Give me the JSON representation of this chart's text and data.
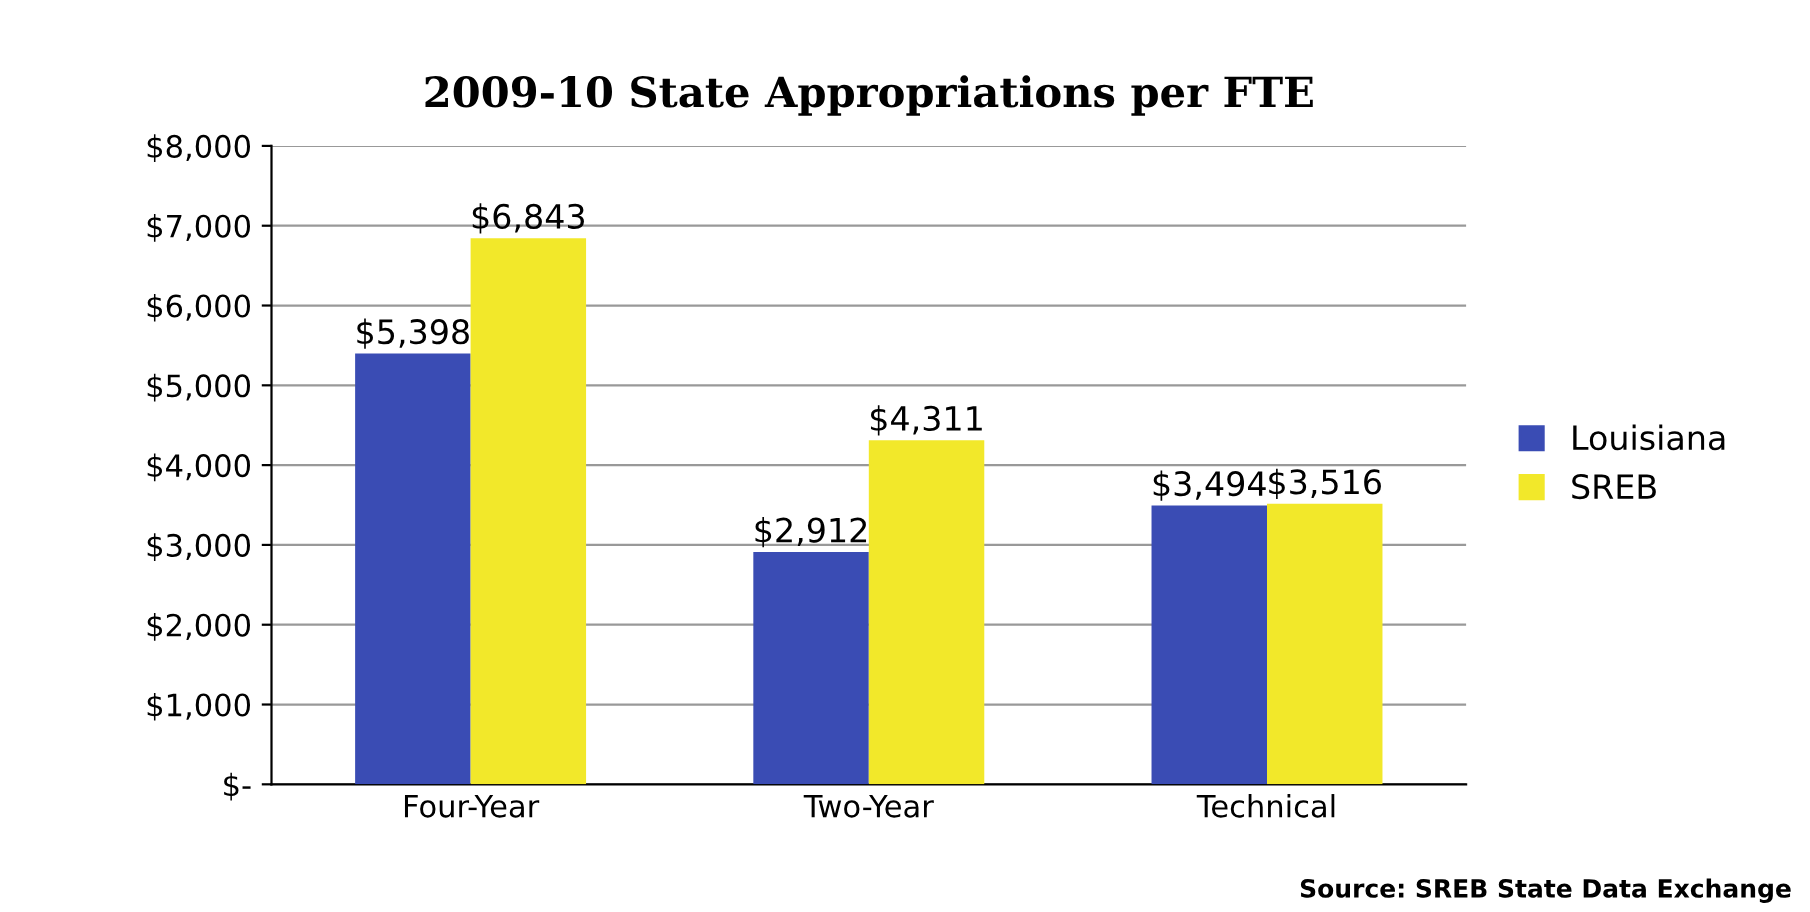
{
  "chart_data": {
    "type": "bar",
    "title": "2009-10 State Appropriations per FTE",
    "categories": [
      "Four-Year",
      "Two-Year",
      "Technical"
    ],
    "series": [
      {
        "name": "Louisiana",
        "color": "#3a4cb4",
        "values": [
          5398,
          2912,
          3494
        ],
        "value_labels": [
          "$5,398",
          "$2,912",
          "$3,494"
        ]
      },
      {
        "name": "SREB",
        "color": "#f2e82a",
        "values": [
          6843,
          4311,
          3516
        ],
        "value_labels": [
          "$6,843",
          "$4,311",
          "$3,516"
        ]
      }
    ],
    "ylim": [
      0,
      8000
    ],
    "yticks": [
      {
        "value": 0,
        "label": "$-"
      },
      {
        "value": 1000,
        "label": "$1,000"
      },
      {
        "value": 2000,
        "label": "$2,000"
      },
      {
        "value": 3000,
        "label": "$3,000"
      },
      {
        "value": 4000,
        "label": "$4,000"
      },
      {
        "value": 5000,
        "label": "$5,000"
      },
      {
        "value": 6000,
        "label": "$6,000"
      },
      {
        "value": 7000,
        "label": "$7,000"
      },
      {
        "value": 8000,
        "label": "$8,000"
      }
    ],
    "grid": "y",
    "legend": "right",
    "annotations": [
      "Source: SREB State Data Exchange"
    ]
  }
}
